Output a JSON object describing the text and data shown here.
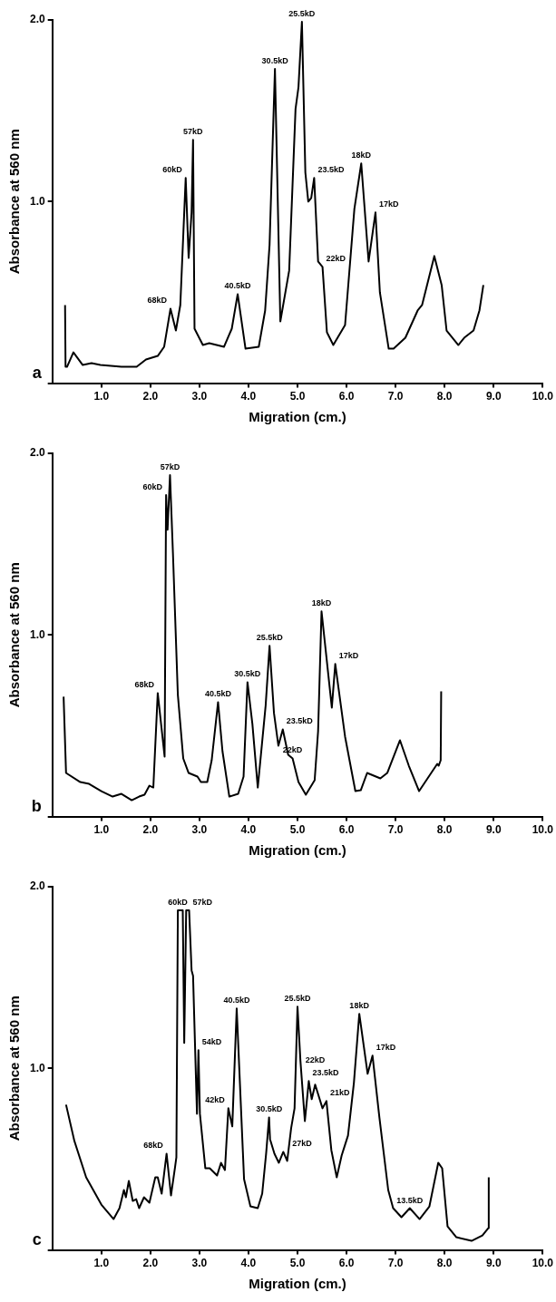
{
  "chart_data": [
    {
      "type": "line",
      "color": "#000000",
      "xlabel": "Migration (cm.)",
      "ylabel": "Absorbance at 560 nm",
      "xlim": [
        0,
        10
      ],
      "ylim": [
        0,
        2
      ],
      "xticks": [
        {
          "value": 1,
          "label": "1.0"
        },
        {
          "value": 2,
          "label": "2.0"
        },
        {
          "value": 3,
          "label": "3.0"
        },
        {
          "value": 4,
          "label": "4.0"
        },
        {
          "value": 5,
          "label": "5.0"
        },
        {
          "value": 6,
          "label": "6.0"
        },
        {
          "value": 7,
          "label": "7.0"
        },
        {
          "value": 8,
          "label": "8.0"
        },
        {
          "value": 9,
          "label": "9.0"
        },
        {
          "value": 10,
          "label": "10.0"
        }
      ],
      "yticks": [
        {
          "value": 0,
          "label": null
        },
        {
          "value": 1,
          "label": "1.0"
        },
        {
          "value": 2,
          "label": "2.0"
        }
      ],
      "x": [
        0.26,
        0.27,
        0.3,
        0.43,
        0.62,
        0.8,
        0.98,
        1.41,
        1.72,
        1.91,
        2.15,
        2.28,
        2.41,
        2.52,
        2.61,
        2.72,
        2.78,
        2.84,
        2.87,
        2.9,
        3.07,
        3.2,
        3.5,
        3.66,
        3.78,
        3.94,
        4.21,
        4.34,
        4.43,
        4.54,
        4.65,
        4.83,
        4.96,
        5.02,
        5.09,
        5.16,
        5.22,
        5.28,
        5.34,
        5.42,
        5.51,
        5.6,
        5.73,
        5.97,
        6.16,
        6.3,
        6.45,
        6.59,
        6.68,
        6.86,
        6.96,
        7.2,
        7.45,
        7.54,
        7.79,
        7.94,
        8.04,
        8.28,
        8.4,
        8.59,
        8.71,
        8.79
      ],
      "values": [
        0.43,
        0.09,
        0.09,
        0.17,
        0.1,
        0.11,
        0.1,
        0.09,
        0.09,
        0.13,
        0.15,
        0.2,
        0.41,
        0.29,
        0.43,
        1.13,
        0.69,
        0.94,
        1.34,
        0.3,
        0.21,
        0.22,
        0.2,
        0.3,
        0.49,
        0.19,
        0.2,
        0.4,
        0.76,
        1.73,
        0.34,
        0.62,
        1.51,
        1.63,
        1.99,
        1.16,
        1.0,
        1.02,
        1.13,
        0.67,
        0.64,
        0.28,
        0.21,
        0.32,
        0.96,
        1.21,
        0.67,
        0.94,
        0.5,
        0.19,
        0.19,
        0.25,
        0.4,
        0.43,
        0.7,
        0.54,
        0.29,
        0.21,
        0.25,
        0.29,
        0.4,
        0.54
      ],
      "annotations": [
        "a",
        {
          "text": "68kD",
          "x": 2.41,
          "y": 0.41
        },
        {
          "text": "60kD",
          "x": 2.72,
          "y": 1.13
        },
        {
          "text": "57kD",
          "x": 2.87,
          "y": 1.34
        },
        {
          "text": "40.5kD",
          "x": 3.78,
          "y": 0.49
        },
        {
          "text": "30.5kD",
          "x": 4.54,
          "y": 1.73
        },
        {
          "text": "25.5kD",
          "x": 5.09,
          "y": 1.99
        },
        {
          "text": "23.5kD",
          "x": 5.34,
          "y": 1.13
        },
        {
          "text": "22kD",
          "x": 5.51,
          "y": 0.64
        },
        {
          "text": "18kD",
          "x": 6.3,
          "y": 1.21
        },
        {
          "text": "17kD",
          "x": 6.59,
          "y": 0.94
        }
      ]
    },
    {
      "type": "line",
      "color": "#000000",
      "xlabel": "Migration (cm.)",
      "ylabel": "Absorbance at 560 nm",
      "xlim": [
        0,
        10
      ],
      "ylim": [
        0,
        2
      ],
      "xticks": [
        {
          "value": 1,
          "label": "1.0"
        },
        {
          "value": 2,
          "label": "2.0"
        },
        {
          "value": 3,
          "label": "3.0"
        },
        {
          "value": 4,
          "label": "4.0"
        },
        {
          "value": 5,
          "label": "5.0"
        },
        {
          "value": 6,
          "label": "6.0"
        },
        {
          "value": 7,
          "label": "7.0"
        },
        {
          "value": 8,
          "label": "8.0"
        },
        {
          "value": 9,
          "label": "9.0"
        },
        {
          "value": 10,
          "label": "10.0"
        }
      ],
      "yticks": [
        {
          "value": 0,
          "label": null
        },
        {
          "value": 1,
          "label": "1.0"
        },
        {
          "value": 2,
          "label": "2.0"
        }
      ],
      "x": [
        0.23,
        0.28,
        0.57,
        0.75,
        1.0,
        1.23,
        1.41,
        1.62,
        1.77,
        1.88,
        1.98,
        2.06,
        2.15,
        2.29,
        2.32,
        2.35,
        2.4,
        2.46,
        2.56,
        2.67,
        2.78,
        2.96,
        3.03,
        3.16,
        3.25,
        3.38,
        3.47,
        3.61,
        3.79,
        3.9,
        3.98,
        4.08,
        4.19,
        4.35,
        4.43,
        4.52,
        4.61,
        4.7,
        4.81,
        4.9,
        5.02,
        5.17,
        5.35,
        5.42,
        5.49,
        5.7,
        5.77,
        5.97,
        6.18,
        6.29,
        6.42,
        6.69,
        6.83,
        7.09,
        7.27,
        7.48,
        7.85,
        7.88,
        7.92,
        7.93
      ],
      "values": [
        0.66,
        0.24,
        0.19,
        0.18,
        0.14,
        0.11,
        0.125,
        0.09,
        0.11,
        0.12,
        0.17,
        0.16,
        0.68,
        0.33,
        1.77,
        1.58,
        1.88,
        1.45,
        0.67,
        0.32,
        0.24,
        0.22,
        0.19,
        0.19,
        0.31,
        0.63,
        0.36,
        0.11,
        0.125,
        0.22,
        0.74,
        0.51,
        0.16,
        0.61,
        0.94,
        0.57,
        0.39,
        0.48,
        0.34,
        0.32,
        0.19,
        0.12,
        0.2,
        0.47,
        1.13,
        0.6,
        0.84,
        0.44,
        0.14,
        0.145,
        0.24,
        0.21,
        0.24,
        0.42,
        0.28,
        0.14,
        0.29,
        0.28,
        0.31,
        0.69
      ],
      "annotations": [
        "b",
        {
          "text": "68kD",
          "x": 2.15,
          "y": 0.68
        },
        {
          "text": "60kD",
          "x": 2.32,
          "y": 1.77
        },
        {
          "text": "57kD",
          "x": 2.4,
          "y": 1.88
        },
        {
          "text": "40.5kD",
          "x": 3.38,
          "y": 0.63
        },
        {
          "text": "30.5kD",
          "x": 3.98,
          "y": 0.74
        },
        {
          "text": "25.5kD",
          "x": 4.43,
          "y": 0.94
        },
        {
          "text": "23.5kD",
          "x": 4.7,
          "y": 0.48
        },
        {
          "text": "22kD",
          "x": 4.9,
          "y": 0.32
        },
        {
          "text": "18kD",
          "x": 5.49,
          "y": 1.13
        },
        {
          "text": "17kD",
          "x": 5.77,
          "y": 0.84
        }
      ]
    },
    {
      "type": "line",
      "color": "#000000",
      "xlabel": "Migration (cm.)",
      "ylabel": "Absorbance at 560 nm",
      "xlim": [
        0,
        10
      ],
      "ylim": [
        0,
        2
      ],
      "xticks": [
        {
          "value": 1,
          "label": "1.0"
        },
        {
          "value": 2,
          "label": "2.0"
        },
        {
          "value": 3,
          "label": "3.0"
        },
        {
          "value": 4,
          "label": "4.0"
        },
        {
          "value": 5,
          "label": "5.0"
        },
        {
          "value": 6,
          "label": "6.0"
        },
        {
          "value": 7,
          "label": "7.0"
        },
        {
          "value": 8,
          "label": "8.0"
        },
        {
          "value": 9,
          "label": "9.0"
        },
        {
          "value": 10,
          "label": "10.0"
        }
      ],
      "yticks": [
        {
          "value": 0,
          "label": null
        },
        {
          "value": 1,
          "label": "1.0"
        },
        {
          "value": 2,
          "label": "2.0"
        }
      ],
      "x": [
        0.28,
        0.45,
        0.69,
        1.0,
        1.25,
        1.37,
        1.46,
        1.5,
        1.56,
        1.64,
        1.71,
        1.77,
        1.87,
        1.98,
        2.1,
        2.15,
        2.23,
        2.33,
        2.42,
        2.5,
        2.53,
        2.56,
        2.66,
        2.69,
        2.73,
        2.79,
        2.84,
        2.87,
        2.95,
        2.98,
        3.01,
        3.12,
        3.21,
        3.36,
        3.44,
        3.52,
        3.59,
        3.67,
        3.76,
        3.91,
        4.04,
        4.19,
        4.28,
        4.36,
        4.42,
        4.44,
        4.53,
        4.62,
        4.71,
        4.79,
        4.87,
        4.94,
        5.0,
        5.06,
        5.15,
        5.23,
        5.29,
        5.36,
        5.51,
        5.59,
        5.69,
        5.8,
        5.9,
        6.03,
        6.15,
        6.26,
        6.43,
        6.53,
        6.67,
        6.85,
        6.95,
        7.12,
        7.29,
        7.49,
        7.69,
        7.87,
        7.95,
        8.06,
        8.24,
        8.55,
        8.77,
        8.89,
        8.9
      ],
      "values": [
        0.8,
        0.6,
        0.4,
        0.25,
        0.17,
        0.23,
        0.33,
        0.29,
        0.38,
        0.27,
        0.28,
        0.23,
        0.29,
        0.26,
        0.4,
        0.4,
        0.31,
        0.53,
        0.3,
        0.45,
        0.51,
        1.87,
        1.87,
        1.14,
        1.87,
        1.87,
        1.54,
        1.51,
        0.75,
        1.1,
        0.75,
        0.45,
        0.45,
        0.41,
        0.48,
        0.44,
        0.78,
        0.68,
        1.33,
        0.39,
        0.24,
        0.23,
        0.31,
        0.53,
        0.73,
        0.61,
        0.53,
        0.48,
        0.54,
        0.49,
        0.67,
        0.78,
        1.34,
        1.04,
        0.71,
        0.93,
        0.83,
        0.91,
        0.78,
        0.82,
        0.55,
        0.4,
        0.52,
        0.63,
        0.92,
        1.3,
        0.97,
        1.07,
        0.73,
        0.33,
        0.23,
        0.18,
        0.23,
        0.17,
        0.24,
        0.48,
        0.45,
        0.13,
        0.07,
        0.05,
        0.08,
        0.12,
        0.4
      ],
      "annotations": [
        "c",
        {
          "text": "68kD",
          "x": 2.33,
          "y": 0.53
        },
        {
          "text": "60kD",
          "x": 2.56,
          "y": 1.87
        },
        {
          "text": "57kD",
          "x": 2.79,
          "y": 1.87
        },
        {
          "text": "54kD",
          "x": 2.98,
          "y": 1.1
        },
        {
          "text": "42kD",
          "x": 3.59,
          "y": 0.78
        },
        {
          "text": "40.5kD",
          "x": 3.76,
          "y": 1.33
        },
        {
          "text": "30.5kD",
          "x": 4.42,
          "y": 0.73
        },
        {
          "text": "27kD",
          "x": 4.71,
          "y": 0.54
        },
        {
          "text": "25.5kD",
          "x": 5.0,
          "y": 1.34
        },
        {
          "text": "23.5kD",
          "x": 5.23,
          "y": 0.93
        },
        {
          "text": "22kD",
          "x": 5.36,
          "y": 0.91
        },
        {
          "text": "21kD",
          "x": 5.59,
          "y": 0.82
        },
        {
          "text": "18kD",
          "x": 6.26,
          "y": 1.3
        },
        {
          "text": "17kD",
          "x": 6.53,
          "y": 1.07
        },
        {
          "text": "13.5kD",
          "x": 7.29,
          "y": 0.23
        }
      ]
    }
  ]
}
